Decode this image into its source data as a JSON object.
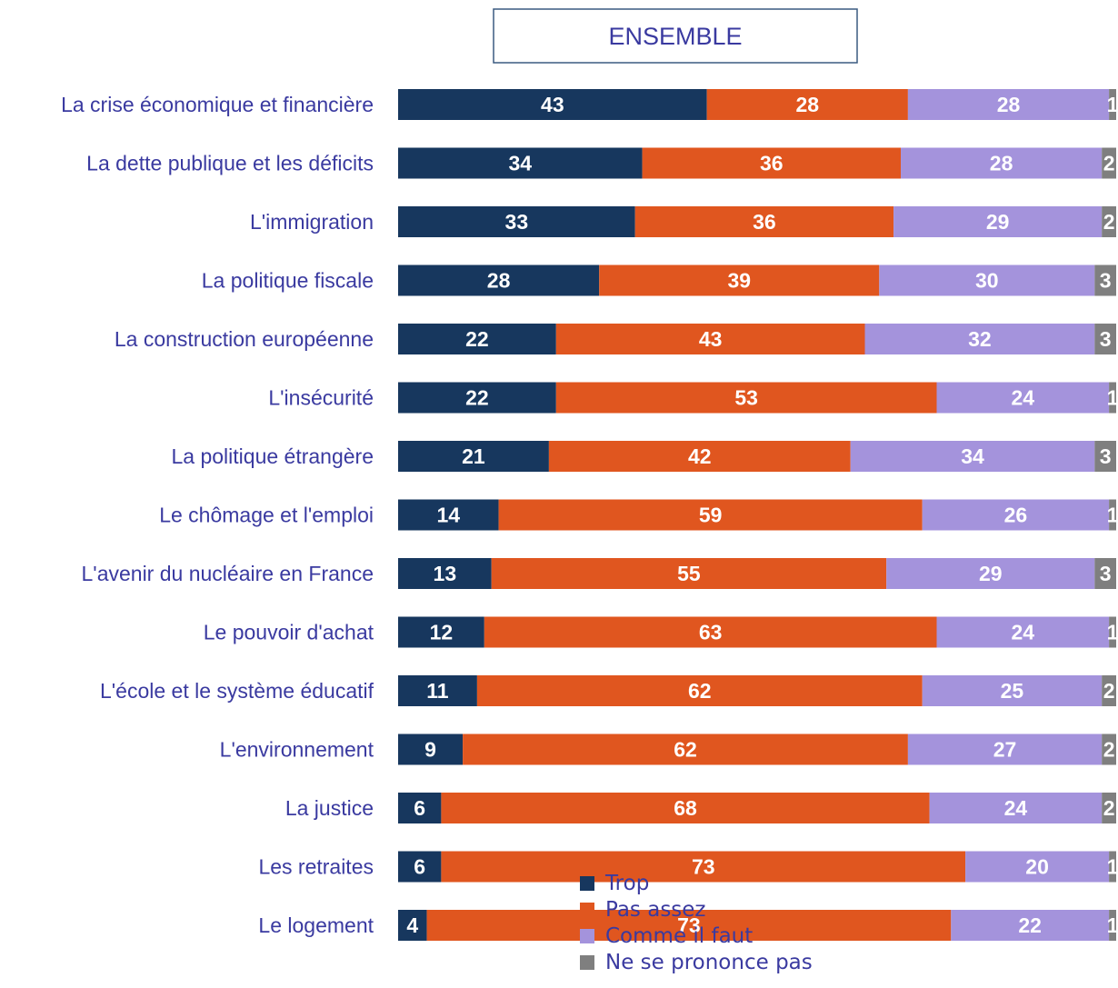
{
  "chart_data": {
    "type": "bar",
    "orientation": "horizontal",
    "stacked": true,
    "title": "ENSEMBLE",
    "categories": [
      "La crise économique et financière",
      "La dette publique et les déficits",
      "L'immigration",
      "La politique fiscale",
      "La construction européenne",
      "L'insécurité",
      "La politique étrangère",
      "Le chômage et l'emploi",
      "L'avenir du nucléaire en France",
      "Le pouvoir d'achat",
      "L'école et le système éducatif",
      "L'environnement",
      "La justice",
      "Les retraites",
      "Le logement"
    ],
    "series": [
      {
        "name": "Trop",
        "color": "#17375e",
        "values": [
          43,
          34,
          33,
          28,
          22,
          22,
          21,
          14,
          13,
          12,
          11,
          9,
          6,
          6,
          4
        ]
      },
      {
        "name": "Pas assez",
        "color": "#e0561f",
        "values": [
          28,
          36,
          36,
          39,
          43,
          53,
          42,
          59,
          55,
          63,
          62,
          62,
          68,
          73,
          73
        ]
      },
      {
        "name": "Comme il faut",
        "color": "#a493dc",
        "values": [
          28,
          28,
          29,
          30,
          32,
          24,
          34,
          26,
          29,
          24,
          25,
          27,
          24,
          20,
          22
        ]
      },
      {
        "name": "Ne se prononce pas",
        "color": "#7f7f7f",
        "values": [
          1,
          2,
          2,
          3,
          3,
          1,
          3,
          1,
          3,
          1,
          2,
          2,
          2,
          1,
          1
        ]
      }
    ]
  }
}
